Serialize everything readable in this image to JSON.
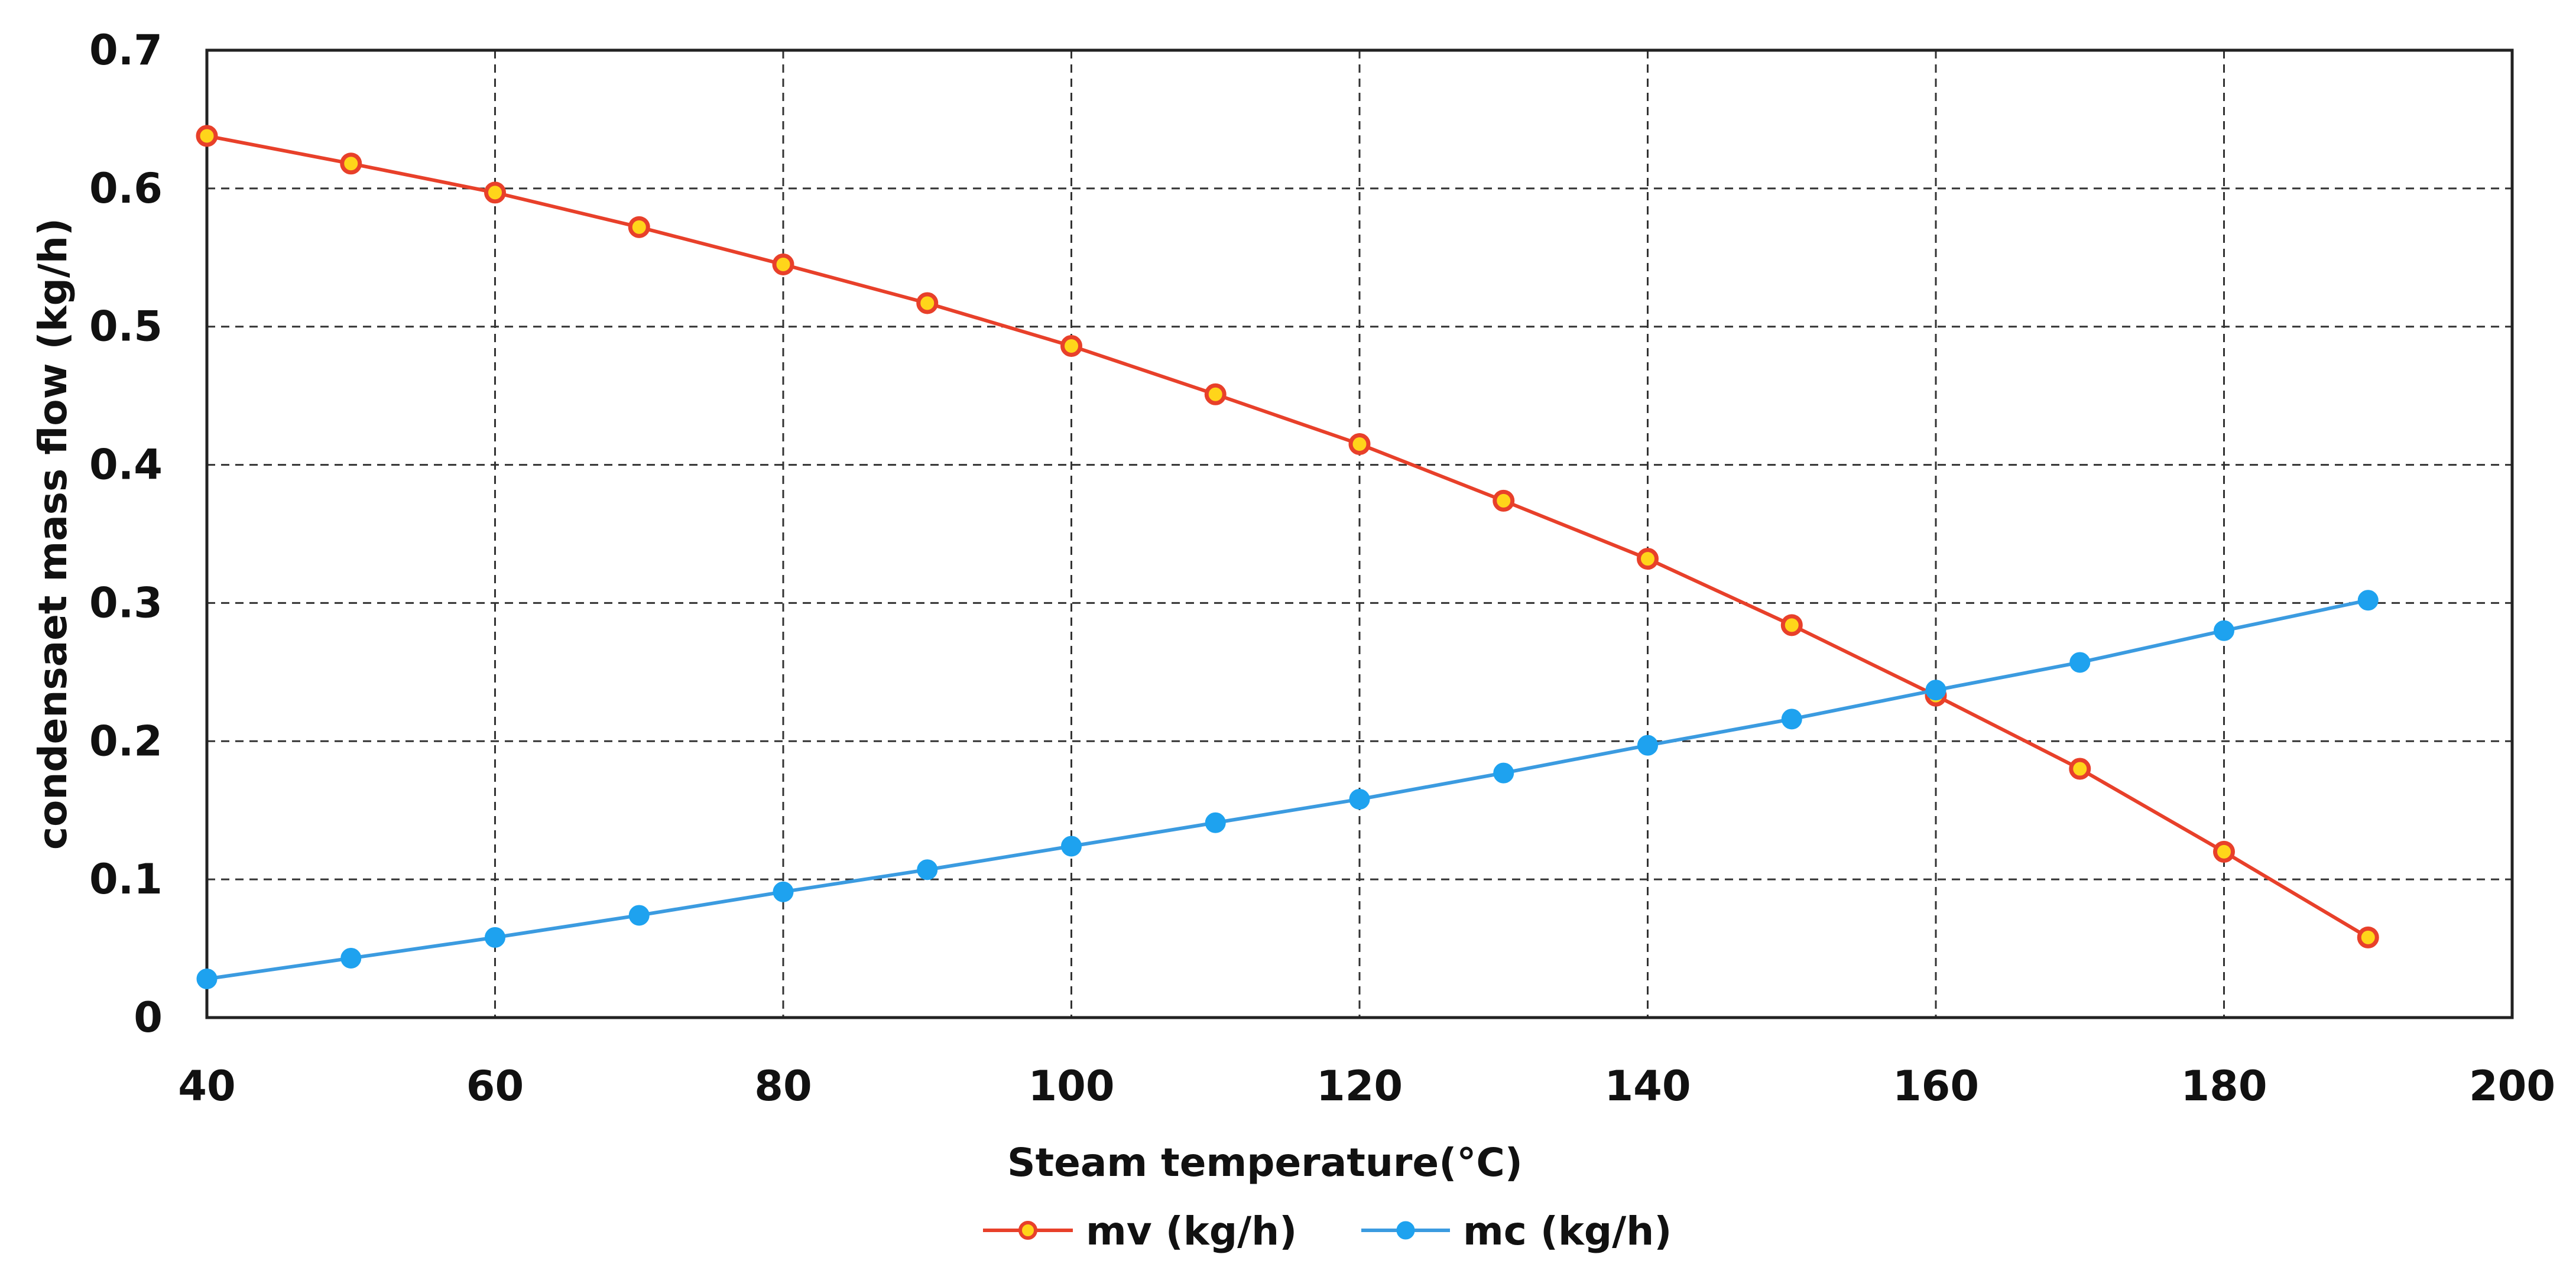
{
  "chart_data": {
    "type": "line",
    "title": "",
    "xlabel": "Steam temperature(°C)",
    "ylabel": "condensaet mass flow (kg/h)",
    "xlim": [
      40,
      200
    ],
    "ylim": [
      0,
      0.7
    ],
    "xticks": [
      40,
      60,
      80,
      100,
      120,
      140,
      160,
      180,
      200
    ],
    "yticks": [
      0,
      0.1,
      0.2,
      0.3,
      0.4,
      0.5,
      0.6,
      0.7
    ],
    "xtick_labels": [
      "40",
      "60",
      "80",
      "100",
      "120",
      "140",
      "160",
      "180",
      "200"
    ],
    "ytick_labels": [
      "0",
      "0.1",
      "0.2",
      "0.3",
      "0.4",
      "0.5",
      "0.6",
      "0.7"
    ],
    "grid": true,
    "legend_position": "bottom-center",
    "x": [
      40,
      50,
      60,
      70,
      80,
      90,
      100,
      110,
      120,
      130,
      140,
      150,
      160,
      170,
      180,
      190
    ],
    "series": [
      {
        "name": "mv (kg/h)",
        "color": "#e8402a",
        "marker_fill": "#ffd51a",
        "marker_edge": "#e8402a",
        "values": [
          0.638,
          0.618,
          0.597,
          0.572,
          0.545,
          0.517,
          0.486,
          0.451,
          0.415,
          0.374,
          0.332,
          0.284,
          0.233,
          0.18,
          0.12,
          0.058
        ]
      },
      {
        "name": "mc (kg/h)",
        "color": "#3b9be0",
        "marker_fill": "#1ea2ef",
        "marker_edge": "#1ea2ef",
        "values": [
          0.028,
          0.043,
          0.058,
          0.074,
          0.091,
          0.107,
          0.124,
          0.141,
          0.158,
          0.177,
          0.197,
          0.216,
          0.237,
          0.257,
          0.28,
          0.302
        ]
      }
    ]
  }
}
